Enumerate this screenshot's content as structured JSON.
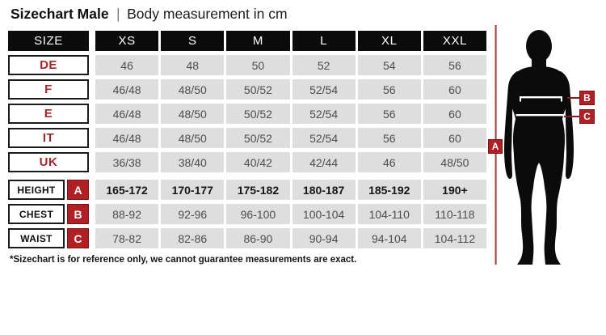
{
  "title": {
    "main": "Sizechart Male",
    "separator": "|",
    "subtitle": "Body measurement in cm"
  },
  "table": {
    "header": {
      "size_label": "SIZE",
      "columns": [
        "XS",
        "S",
        "M",
        "L",
        "XL",
        "XXL"
      ]
    },
    "size_rows": [
      {
        "label": "DE",
        "values": [
          "46",
          "48",
          "50",
          "52",
          "54",
          "56"
        ]
      },
      {
        "label": "F",
        "values": [
          "46/48",
          "48/50",
          "50/52",
          "52/54",
          "56",
          "60"
        ]
      },
      {
        "label": "E",
        "values": [
          "46/48",
          "48/50",
          "50/52",
          "52/54",
          "56",
          "60"
        ]
      },
      {
        "label": "IT",
        "values": [
          "46/48",
          "48/50",
          "50/52",
          "52/54",
          "56",
          "60"
        ]
      },
      {
        "label": "UK",
        "values": [
          "36/38",
          "38/40",
          "40/42",
          "42/44",
          "46",
          "48/50"
        ]
      }
    ],
    "measure_rows": [
      {
        "label": "HEIGHT",
        "marker": "A",
        "bold": true,
        "values": [
          "165-172",
          "170-177",
          "175-182",
          "180-187",
          "185-192",
          "190+"
        ]
      },
      {
        "label": "CHEST",
        "marker": "B",
        "bold": false,
        "values": [
          "88-92",
          "92-96",
          "96-100",
          "100-104",
          "104-110",
          "110-118"
        ]
      },
      {
        "label": "WAIST",
        "marker": "C",
        "bold": false,
        "values": [
          "78-82",
          "82-86",
          "86-90",
          "90-94",
          "94-104",
          "104-112"
        ]
      }
    ]
  },
  "footnote": "*Sizechart is for reference only, we cannot guarantee measurements are exact.",
  "figure": {
    "markers": {
      "a": "A",
      "b": "B",
      "c": "C"
    }
  },
  "colors": {
    "badge_red": "#b01f24",
    "badge_border": "#7d1216",
    "label_red": "#a3262a",
    "measure_line_red": "#a33c36",
    "cell_gray": "#dedede",
    "header_black": "#0b0b0b"
  },
  "chart_data": {
    "type": "table",
    "title": "Sizechart Male | Body measurement in cm",
    "columns": [
      "SIZE",
      "XS",
      "S",
      "M",
      "L",
      "XL",
      "XXL"
    ],
    "rows": [
      [
        "DE",
        "46",
        "48",
        "50",
        "52",
        "54",
        "56"
      ],
      [
        "F",
        "46/48",
        "48/50",
        "50/52",
        "52/54",
        "56",
        "60"
      ],
      [
        "E",
        "46/48",
        "48/50",
        "50/52",
        "52/54",
        "56",
        "60"
      ],
      [
        "IT",
        "46/48",
        "48/50",
        "50/52",
        "52/54",
        "56",
        "60"
      ],
      [
        "UK",
        "36/38",
        "38/40",
        "40/42",
        "42/44",
        "46",
        "48/50"
      ],
      [
        "HEIGHT (A)",
        "165-172",
        "170-177",
        "175-182",
        "180-187",
        "185-192",
        "190+"
      ],
      [
        "CHEST (B)",
        "88-92",
        "92-96",
        "96-100",
        "100-104",
        "104-110",
        "110-118"
      ],
      [
        "WAIST (C)",
        "78-82",
        "82-86",
        "86-90",
        "90-94",
        "94-104",
        "104-112"
      ]
    ],
    "footnote": "*Sizechart is for reference only, we cannot guarantee measurements are exact."
  }
}
